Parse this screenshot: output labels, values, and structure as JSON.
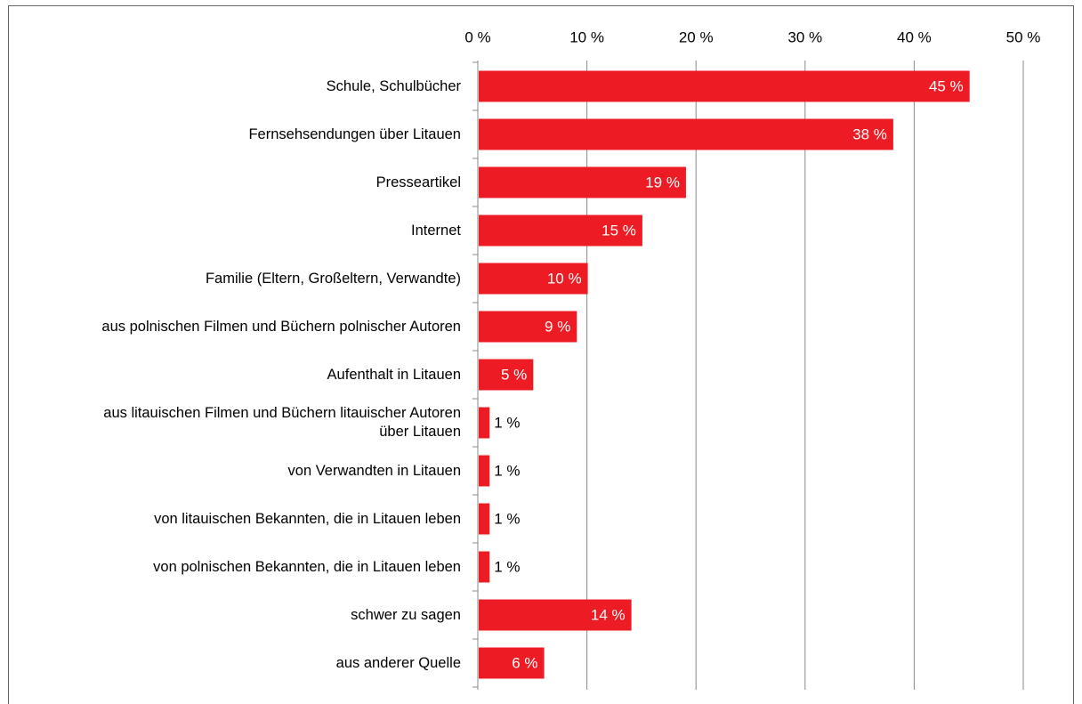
{
  "chart_data": {
    "type": "bar",
    "orientation": "horizontal",
    "categories": [
      "Schule, Schulbücher",
      "Fernsehsendungen über Litauen",
      "Presseartikel",
      "Internet",
      "Familie (Eltern, Großeltern, Verwandte)",
      "aus polnischen Filmen und Büchern polnischer Autoren",
      "Aufenthalt in Litauen",
      "aus litauischen Filmen und Büchern litauischer Autoren über Litauen",
      "von Verwandten in Litauen",
      "von litauischen Bekannten, die in Litauen leben",
      "von polnischen Bekannten, die in Litauen leben",
      "schwer zu sagen",
      "aus anderer Quelle"
    ],
    "values": [
      45,
      38,
      19,
      15,
      10,
      9,
      5,
      1,
      1,
      1,
      1,
      14,
      6
    ],
    "value_labels": [
      "45 %",
      "38 %",
      "19 %",
      "15 %",
      "10 %",
      "9 %",
      "5 %",
      "1 %",
      "1 %",
      "1 %",
      "1 %",
      "14 %",
      "6 %"
    ],
    "color": "#ed1c24",
    "xlim": [
      0,
      50
    ],
    "xticks": [
      {
        "value": 0,
        "label": "0 %"
      },
      {
        "value": 10,
        "label": "10 %"
      },
      {
        "value": 20,
        "label": "20 %"
      },
      {
        "value": 30,
        "label": "30 %"
      },
      {
        "value": 40,
        "label": "40 %"
      },
      {
        "value": 50,
        "label": "50 %"
      }
    ],
    "grid": true
  }
}
